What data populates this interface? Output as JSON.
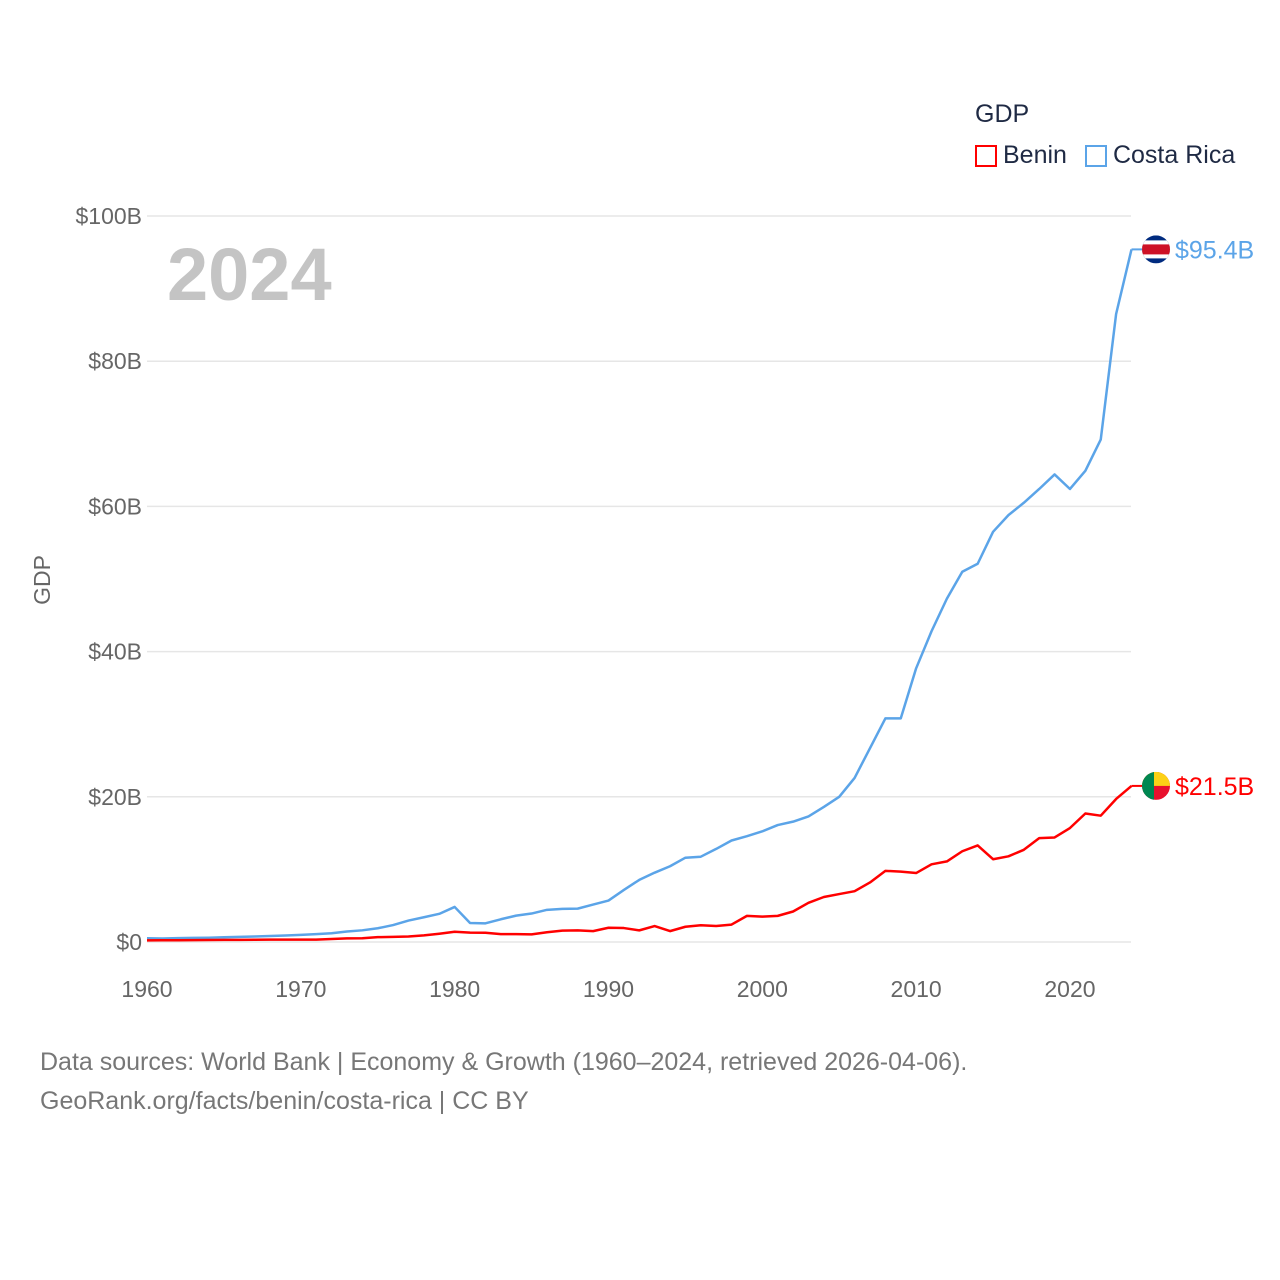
{
  "chart_data": {
    "type": "line",
    "title": "GDP",
    "year_label": "2024",
    "ylabel": "GDP",
    "xlabel": "",
    "xlim": [
      1960,
      2024
    ],
    "ylim": [
      0,
      100
    ],
    "x_ticks": [
      "1960",
      "1970",
      "1980",
      "1990",
      "2000",
      "2010",
      "2020"
    ],
    "y_ticks": [
      "$0",
      "$20B",
      "$40B",
      "$60B",
      "$80B",
      "$100B"
    ],
    "y_tick_values": [
      0,
      20,
      40,
      60,
      80,
      100
    ],
    "grid": true,
    "legend_position": "top-right",
    "x": [
      1960,
      1961,
      1962,
      1963,
      1964,
      1965,
      1966,
      1967,
      1968,
      1969,
      1970,
      1971,
      1972,
      1973,
      1974,
      1975,
      1976,
      1977,
      1978,
      1979,
      1980,
      1981,
      1982,
      1983,
      1984,
      1985,
      1986,
      1987,
      1988,
      1989,
      1990,
      1991,
      1992,
      1993,
      1994,
      1995,
      1996,
      1997,
      1998,
      1999,
      2000,
      2001,
      2002,
      2003,
      2004,
      2005,
      2006,
      2007,
      2008,
      2009,
      2010,
      2011,
      2012,
      2013,
      2014,
      2015,
      2016,
      2017,
      2018,
      2019,
      2020,
      2021,
      2022,
      2023,
      2024
    ],
    "series": [
      {
        "name": "Benin",
        "color": "#ff0000",
        "end_label": "$21.5B",
        "values": [
          0.23,
          0.24,
          0.24,
          0.26,
          0.27,
          0.29,
          0.3,
          0.31,
          0.32,
          0.33,
          0.33,
          0.33,
          0.41,
          0.5,
          0.52,
          0.67,
          0.7,
          0.75,
          0.91,
          1.14,
          1.41,
          1.29,
          1.27,
          1.09,
          1.09,
          1.05,
          1.34,
          1.57,
          1.6,
          1.5,
          1.96,
          1.92,
          1.6,
          2.2,
          1.5,
          2.1,
          2.3,
          2.2,
          2.4,
          3.6,
          3.5,
          3.6,
          4.2,
          5.4,
          6.2,
          6.6,
          7.0,
          8.2,
          9.8,
          9.7,
          9.5,
          10.7,
          11.1,
          12.5,
          13.3,
          11.4,
          11.8,
          12.7,
          14.3,
          14.4,
          15.7,
          17.7,
          17.4,
          19.7,
          21.5
        ]
      },
      {
        "name": "Costa Rica",
        "color": "#5ba4e8",
        "end_label": "$95.4B",
        "values": [
          0.51,
          0.48,
          0.53,
          0.56,
          0.59,
          0.65,
          0.71,
          0.76,
          0.82,
          0.9,
          0.98,
          1.08,
          1.21,
          1.45,
          1.61,
          1.89,
          2.33,
          2.95,
          3.41,
          3.88,
          4.83,
          2.62,
          2.57,
          3.13,
          3.63,
          3.92,
          4.43,
          4.57,
          4.6,
          5.16,
          5.71,
          7.17,
          8.55,
          9.55,
          10.43,
          11.61,
          11.75,
          12.82,
          13.98,
          14.57,
          15.24,
          16.11,
          16.58,
          17.3,
          18.6,
          20.0,
          22.6,
          26.7,
          30.8,
          30.8,
          37.7,
          42.8,
          47.3,
          51.0,
          52.1,
          56.5,
          58.8,
          60.5,
          62.4,
          64.4,
          62.4,
          64.9,
          69.2,
          86.5,
          95.4
        ]
      }
    ]
  },
  "legend": {
    "title": "GDP",
    "items": [
      "Benin",
      "Costa Rica"
    ]
  },
  "footer": {
    "line1": "Data sources: World Bank | Economy & Growth (1960–2024, retrieved 2026-04-06).",
    "line2": "GeoRank.org/facts/benin/costa-rica | CC BY"
  }
}
